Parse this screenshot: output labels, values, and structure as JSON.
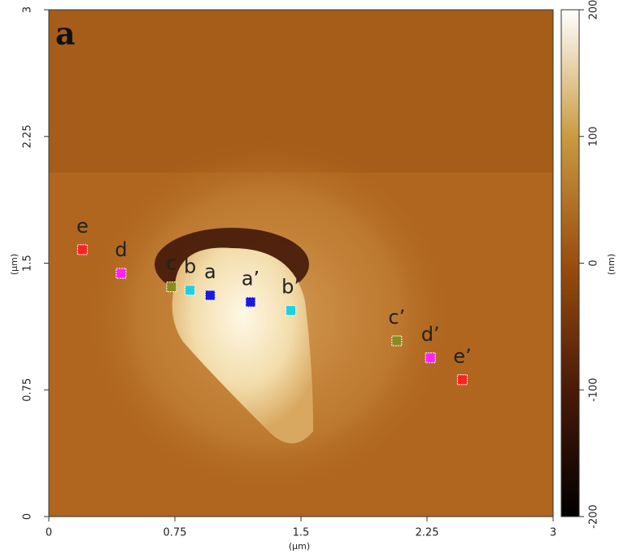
{
  "chart_data": {
    "type": "scatter",
    "panel_label": "a",
    "x_label": "(µm)",
    "y_label": "(µm)",
    "xlim": [
      0,
      3
    ],
    "ylim": [
      0,
      3
    ],
    "xticks": [
      0,
      0.75,
      1.5,
      2.25,
      3
    ],
    "yticks": [
      0,
      0.75,
      1.5,
      2.25,
      3
    ],
    "points": [
      {
        "label": "e",
        "color": "#ff2020",
        "x": 0.2,
        "y": 1.58
      },
      {
        "label": "d",
        "color": "#ff20ff",
        "x": 0.43,
        "y": 1.44
      },
      {
        "label": "c",
        "color": "#8a8a20",
        "x": 0.73,
        "y": 1.36
      },
      {
        "label": "b",
        "color": "#20d0e0",
        "x": 0.84,
        "y": 1.34
      },
      {
        "label": "a",
        "color": "#1a1adf",
        "x": 0.96,
        "y": 1.31
      },
      {
        "label": "a’",
        "color": "#1a1adf",
        "x": 1.2,
        "y": 1.27
      },
      {
        "label": "b’",
        "color": "#20d0e0",
        "x": 1.44,
        "y": 1.22
      },
      {
        "label": "c’",
        "color": "#8a8a20",
        "x": 2.07,
        "y": 1.04
      },
      {
        "label": "d’",
        "color": "#ff20ff",
        "x": 2.27,
        "y": 0.94
      },
      {
        "label": "e’",
        "color": "#ff2020",
        "x": 2.46,
        "y": 0.81
      }
    ],
    "colorbar": {
      "lim": [
        -200,
        200
      ],
      "ticks": [
        -200,
        -100,
        0,
        100,
        200
      ],
      "label": "(nm)"
    }
  }
}
